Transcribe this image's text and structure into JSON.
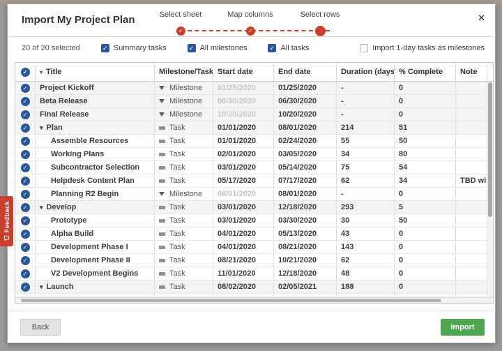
{
  "dialog": {
    "title": "Import My Project Plan",
    "close_icon": "✕",
    "steps": [
      {
        "label": "Select sheet",
        "state": "complete"
      },
      {
        "label": "Map columns",
        "state": "complete"
      },
      {
        "label": "Select rows",
        "state": "current"
      }
    ],
    "toolbar": {
      "selection_summary": "20 of 20 selected",
      "filters": [
        {
          "label": "Summary tasks",
          "checked": true
        },
        {
          "label": "All milestones",
          "checked": true
        },
        {
          "label": "All tasks",
          "checked": true
        }
      ],
      "option": {
        "label": "Import 1-day tasks as milestones",
        "checked": false
      }
    },
    "table": {
      "columns": [
        "Title",
        "Milestone/Task",
        "Start date",
        "End date",
        "Duration (days)",
        "% Complete",
        "Note"
      ],
      "rows": [
        {
          "title": "Project Kickoff",
          "type": "Milestone",
          "start": "01/25/2020",
          "end": "01/25/2020",
          "duration": "-",
          "complete": "0",
          "note": "",
          "indent": 0,
          "caret": false
        },
        {
          "title": "Beta Release",
          "type": "Milestone",
          "start": "06/30/2020",
          "end": "06/30/2020",
          "duration": "-",
          "complete": "0",
          "note": "",
          "indent": 0,
          "caret": false
        },
        {
          "title": "Final Release",
          "type": "Milestone",
          "start": "10/20/2020",
          "end": "10/20/2020",
          "duration": "-",
          "complete": "0",
          "note": "",
          "indent": 0,
          "caret": false
        },
        {
          "title": "Plan",
          "type": "Task",
          "start": "01/01/2020",
          "end": "08/01/2020",
          "duration": "214",
          "complete": "51",
          "note": "",
          "indent": 0,
          "caret": true
        },
        {
          "title": "Assemble Resources",
          "type": "Task",
          "start": "01/01/2020",
          "end": "02/24/2020",
          "duration": "55",
          "complete": "50",
          "note": "",
          "indent": 1,
          "caret": false
        },
        {
          "title": "Working Plans",
          "type": "Task",
          "start": "02/01/2020",
          "end": "03/05/2020",
          "duration": "34",
          "complete": "80",
          "note": "",
          "indent": 1,
          "caret": false
        },
        {
          "title": "Subcontractor Selection",
          "type": "Task",
          "start": "03/01/2020",
          "end": "05/14/2020",
          "duration": "75",
          "complete": "54",
          "note": "",
          "indent": 1,
          "caret": false
        },
        {
          "title": "Helpdesk Content Plan",
          "type": "Task",
          "start": "05/17/2020",
          "end": "07/17/2020",
          "duration": "62",
          "complete": "34",
          "note": "TBD with M",
          "indent": 1,
          "caret": false
        },
        {
          "title": "Planning R2 Begin",
          "type": "Milestone",
          "start": "08/01/2020",
          "end": "08/01/2020",
          "duration": "-",
          "complete": "0",
          "note": "",
          "indent": 1,
          "caret": false
        },
        {
          "title": "Develop",
          "type": "Task",
          "start": "03/01/2020",
          "end": "12/18/2020",
          "duration": "293",
          "complete": "5",
          "note": "",
          "indent": 0,
          "caret": true
        },
        {
          "title": "Prototype",
          "type": "Task",
          "start": "03/01/2020",
          "end": "03/30/2020",
          "duration": "30",
          "complete": "50",
          "note": "",
          "indent": 1,
          "caret": false
        },
        {
          "title": "Alpha Build",
          "type": "Task",
          "start": "04/01/2020",
          "end": "05/13/2020",
          "duration": "43",
          "complete": "0",
          "note": "",
          "indent": 1,
          "caret": false
        },
        {
          "title": "Development Phase I",
          "type": "Task",
          "start": "04/01/2020",
          "end": "08/21/2020",
          "duration": "143",
          "complete": "0",
          "note": "",
          "indent": 1,
          "caret": false
        },
        {
          "title": "Development Phase II",
          "type": "Task",
          "start": "08/21/2020",
          "end": "10/21/2020",
          "duration": "62",
          "complete": "0",
          "note": "",
          "indent": 1,
          "caret": false
        },
        {
          "title": "V2 Development Begins",
          "type": "Task",
          "start": "11/01/2020",
          "end": "12/18/2020",
          "duration": "48",
          "complete": "0",
          "note": "",
          "indent": 1,
          "caret": false
        },
        {
          "title": "Launch",
          "type": "Task",
          "start": "08/02/2020",
          "end": "02/05/2021",
          "duration": "188",
          "complete": "0",
          "note": "",
          "indent": 0,
          "caret": true
        }
      ]
    },
    "footer": {
      "back_label": "Back",
      "import_label": "Import"
    }
  },
  "feedback_tab": {
    "label": "Feedback"
  },
  "colors": {
    "accent_red": "#C8402D",
    "checkbox_blue": "#2A579A",
    "import_green": "#4CA750"
  }
}
